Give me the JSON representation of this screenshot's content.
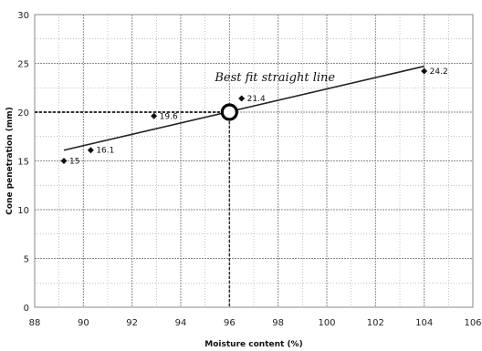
{
  "chart_data": {
    "type": "scatter",
    "title": "",
    "xlabel": "Moisture content (%)",
    "ylabel": "Cone penetration (mm)",
    "xlim": [
      88,
      106
    ],
    "ylim": [
      0,
      30
    ],
    "x_ticks": [
      88,
      90,
      92,
      94,
      96,
      98,
      100,
      102,
      104,
      106
    ],
    "y_ticks": [
      0,
      5,
      10,
      15,
      20,
      25,
      30
    ],
    "grid": true,
    "legend": "none",
    "series": [
      {
        "points": [
          {
            "x": 89.2,
            "y": 15.0,
            "label": "15"
          },
          {
            "x": 90.3,
            "y": 16.1,
            "label": "16.1"
          },
          {
            "x": 92.9,
            "y": 19.6,
            "label": "19.6"
          },
          {
            "x": 96.5,
            "y": 21.4,
            "label": "21.4"
          },
          {
            "x": 104.0,
            "y": 24.2,
            "label": "24.2"
          }
        ]
      }
    ],
    "fit_line": {
      "label": "Best fit straight line",
      "x": [
        89.2,
        104.0
      ],
      "y": [
        16.1,
        24.7
      ]
    },
    "reference_y": 20,
    "reference_x": 96,
    "highlight_point": {
      "x": 96,
      "y": 20
    },
    "colors": {
      "grid": "#8a8a8a",
      "line": "#222222",
      "marker": "#111111",
      "reference": "#333333"
    }
  }
}
